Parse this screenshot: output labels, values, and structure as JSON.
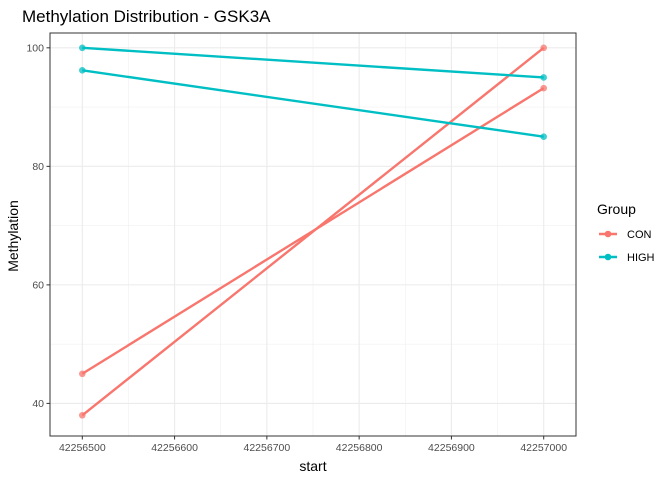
{
  "chart_data": {
    "type": "line",
    "title": "Methylation Distribution - GSK3A",
    "xlabel": "start",
    "ylabel": "Methylation",
    "xlim": [
      42256465,
      42257035
    ],
    "ylim": [
      34.5,
      102.5
    ],
    "x_ticks": [
      42256500,
      42256600,
      42256700,
      42256800,
      42256900,
      42257000
    ],
    "x_tick_labels": [
      "42256500",
      "42256600",
      "42256700",
      "42256800",
      "42256900",
      "42257000"
    ],
    "y_ticks": [
      40,
      60,
      80,
      100
    ],
    "y_tick_labels": [
      "40",
      "60",
      "80",
      "100"
    ],
    "grid": true,
    "legend": {
      "title": "Group",
      "position": "right",
      "entries": [
        {
          "label": "CON",
          "color": "#F8766D"
        },
        {
          "label": "HIGH",
          "color": "#00BFC4"
        }
      ]
    },
    "series": [
      {
        "group": "CON",
        "color": "#F8766D",
        "x": [
          42256500,
          42257000
        ],
        "y": [
          45,
          93.2
        ]
      },
      {
        "group": "CON",
        "color": "#F8766D",
        "x": [
          42256500,
          42257000
        ],
        "y": [
          38,
          100
        ]
      },
      {
        "group": "HIGH",
        "color": "#00BFC4",
        "x": [
          42256500,
          42257000
        ],
        "y": [
          100,
          95
        ]
      },
      {
        "group": "HIGH",
        "color": "#00BFC4",
        "x": [
          42256500,
          42257000
        ],
        "y": [
          96.2,
          85
        ]
      }
    ]
  }
}
